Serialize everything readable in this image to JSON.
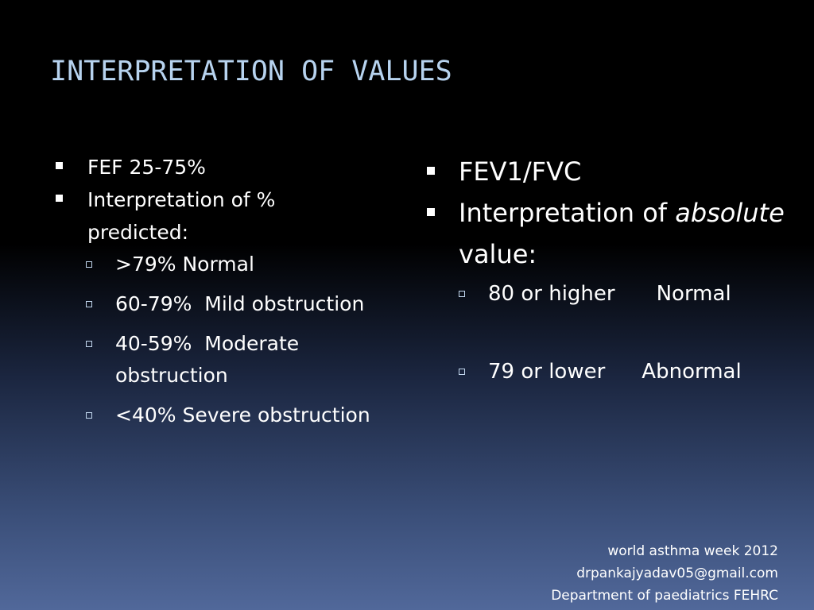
{
  "slide": {
    "title": "INTERPRETATION OF VALUES",
    "left_column": {
      "items": [
        {
          "text": "FEF 25-75%"
        },
        {
          "text": "Interpretation of % predicted:"
        }
      ],
      "subitems": [
        {
          "text": ">79% Normal"
        },
        {
          "text": "60-79%  Mild obstruction"
        },
        {
          "text": "40-59%  Moderate obstruction"
        },
        {
          "text": "<40% Severe obstruction"
        }
      ]
    },
    "right_column": {
      "items": [
        {
          "text": "FEV1/FVC"
        },
        {
          "text_before": "Interpretation of ",
          "emphasis": "absolute",
          "text_after": " value:"
        }
      ],
      "subitems": [
        {
          "value": "80 or higher",
          "result": "Normal"
        },
        {
          "value": "79 or lower",
          "result": "Abnormal"
        }
      ]
    },
    "footer": {
      "line1": "world asthma week 2012",
      "line2": "drpankajyadav05@gmail.com",
      "line3": "Department of paediatrics FEHRC"
    },
    "colors": {
      "title": "#b7d3ef",
      "text": "#ffffff",
      "background_top": "#000000",
      "background_bottom": "#51689a"
    },
    "icons": {
      "level1_bullet": "filled-square",
      "level2_bullet": "hollow-square"
    }
  }
}
